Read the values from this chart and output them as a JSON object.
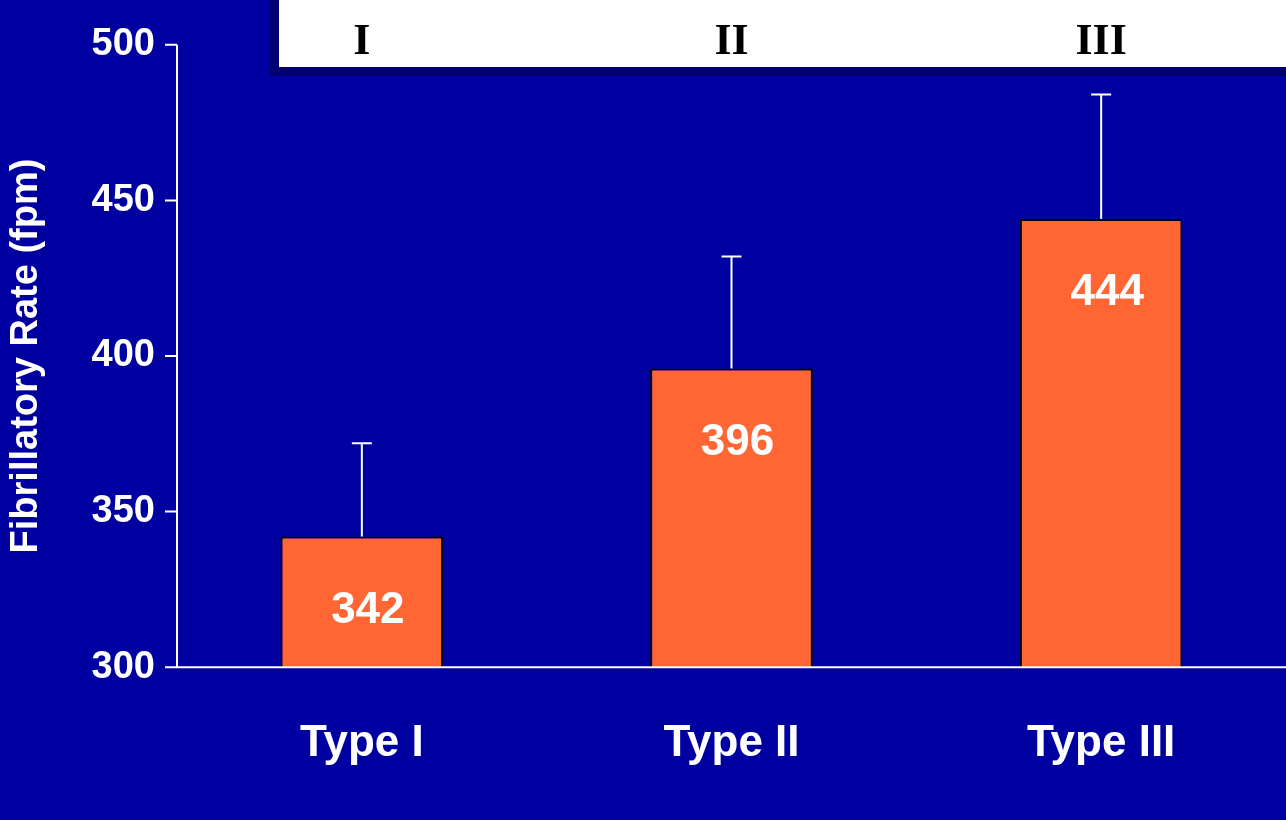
{
  "chart_data": {
    "type": "bar",
    "ylabel": "Fibrillatory Rate (fpm)",
    "categories": [
      "Type I",
      "Type II",
      "Type III"
    ],
    "values": [
      342,
      396,
      444
    ],
    "errors": [
      [
        342,
        372
      ],
      [
        396,
        432
      ],
      [
        444,
        484
      ]
    ],
    "color": "#ff6633",
    "ylim": [
      300,
      500
    ],
    "yticks": [
      300,
      350,
      400,
      450,
      500
    ],
    "grid": false,
    "legend": false,
    "data_labels": true,
    "annotations": [
      "I",
      "II",
      "III"
    ]
  }
}
